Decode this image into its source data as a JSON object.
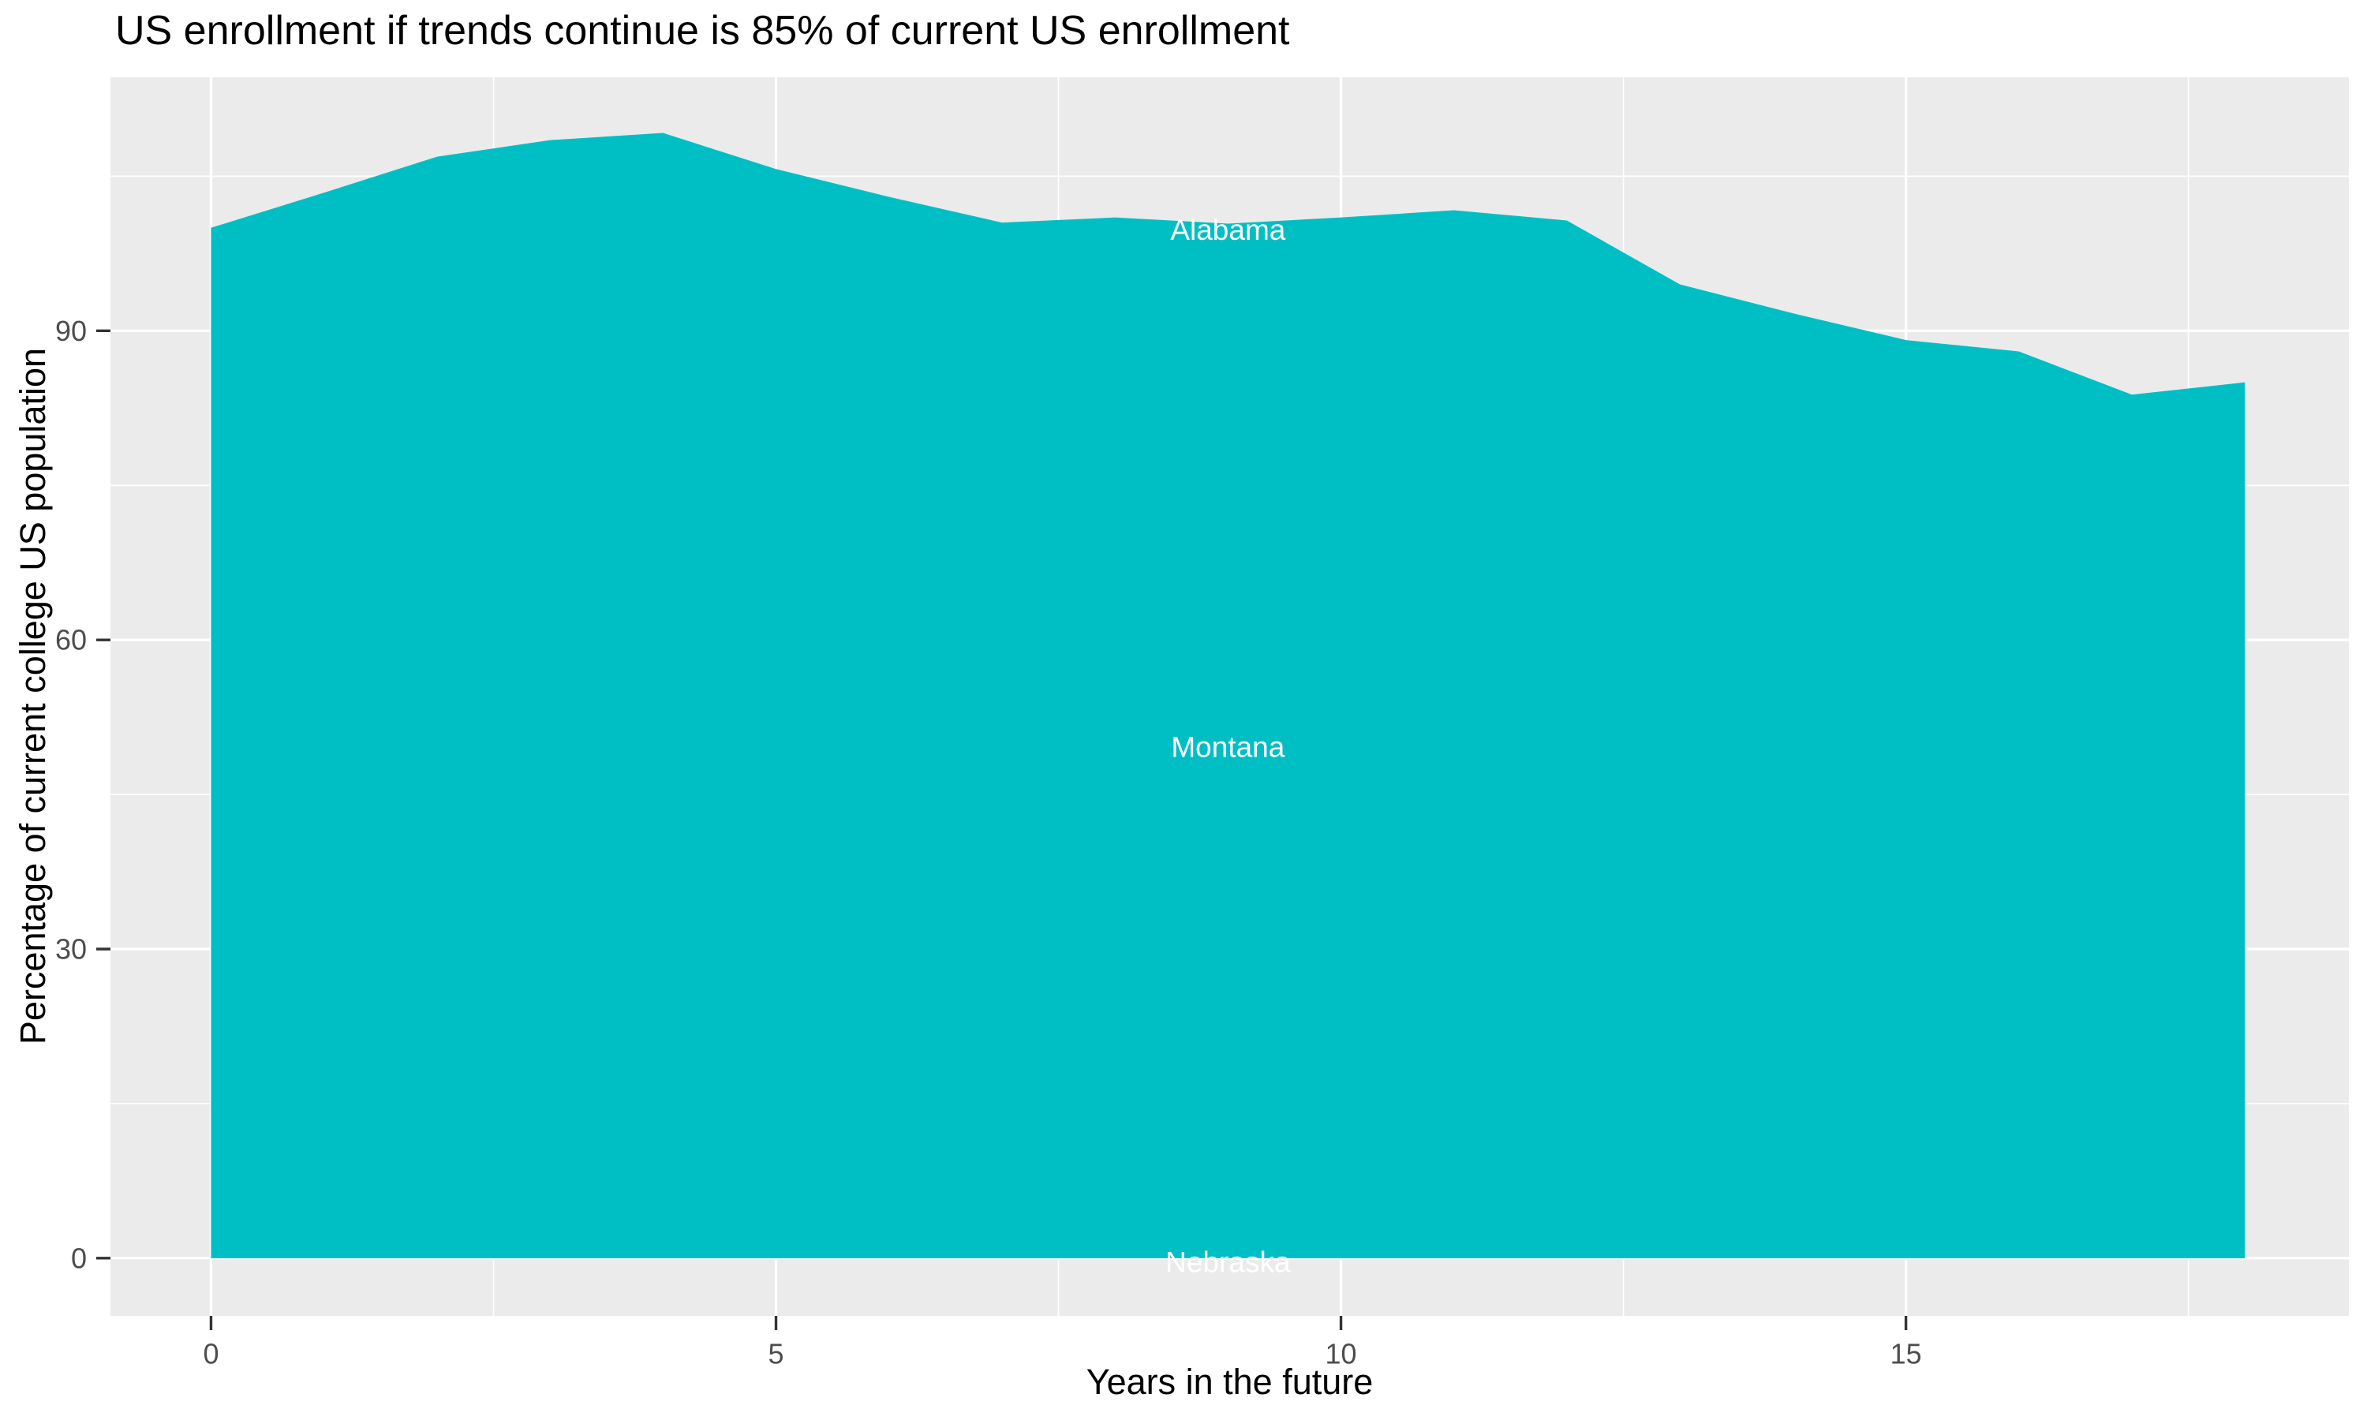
{
  "chart_data": {
    "type": "area",
    "title": "US enrollment if trends continue is 85% of current US enrollment",
    "xlabel": "Years in the future",
    "ylabel": "Percentage of current college US population",
    "x": [
      0,
      1,
      2,
      3,
      4,
      5,
      6,
      7,
      8,
      9,
      10,
      11,
      12,
      13,
      14,
      15,
      16,
      17,
      18
    ],
    "values": [
      100,
      103.4,
      106.9,
      108.5,
      109.2,
      105.7,
      103.0,
      100.5,
      101.0,
      100.4,
      101.0,
      101.7,
      100.7,
      94.5,
      91.7,
      89.1,
      88.0,
      83.8,
      85.0
    ],
    "baseline": 0,
    "axis_range": {
      "x": [
        -0.89,
        18.92
      ],
      "y": [
        -5.6,
        114.6
      ]
    },
    "x_ticks": [
      {
        "value": 0,
        "label": "0"
      },
      {
        "value": 5,
        "label": "5"
      },
      {
        "value": 10,
        "label": "10"
      },
      {
        "value": 15,
        "label": "15"
      }
    ],
    "y_ticks": [
      {
        "value": 0,
        "label": "0"
      },
      {
        "value": 30,
        "label": "30"
      },
      {
        "value": 60,
        "label": "60"
      },
      {
        "value": 90,
        "label": "90"
      }
    ],
    "x_minor_ticks": [
      2.5,
      7.5,
      12.5,
      17.5
    ],
    "y_minor_ticks": [
      15,
      45,
      75,
      105
    ],
    "grid": "on",
    "legend": "none",
    "annotations": [
      {
        "label": "Alabama",
        "x": 9,
        "y": 99.8
      },
      {
        "label": "Montana",
        "x": 9,
        "y": 49.6
      },
      {
        "label": "Nebraska",
        "x": 9,
        "y": -0.4
      }
    ],
    "colors": {
      "area_fill": "#00BFC4",
      "panel_bg": "#EBEBEB",
      "grid": "#FFFFFF",
      "tick_mark": "#333333",
      "tick_label": "#4D4D4D",
      "title": "#000000",
      "axis_title": "#000000",
      "annotation_text": "#FFFFFF",
      "page_bg": "#FFFFFF"
    }
  }
}
